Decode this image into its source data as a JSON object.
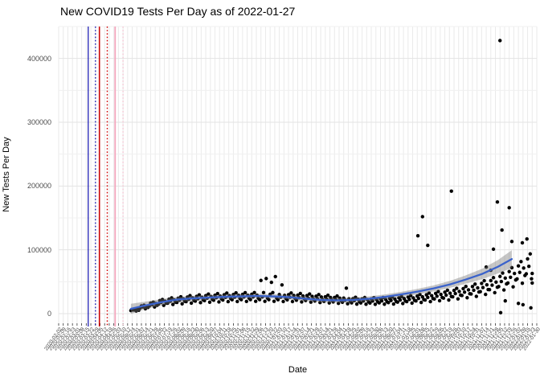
{
  "chart_data": {
    "type": "scatter",
    "title": "New COVID19 Tests Per Day as of 2022-01-27",
    "xlabel": "Date",
    "ylabel": "New Tests Per Day",
    "point_color": "#000000",
    "grid": {
      "v_color": "#eaeaea",
      "h_major_color": "#e3e3e3",
      "h_minor_color": "#f0f0f0",
      "tick_color": "#333333"
    },
    "y_ticks": [
      0,
      100000,
      200000,
      300000,
      400000
    ],
    "y_minor_ticks": [
      50000,
      150000,
      250000,
      350000,
      450000
    ],
    "ylim": [
      -15000,
      450000
    ],
    "x_start_date": "2020-02-02",
    "x_total_days": 728,
    "x_tick_labels": [
      "2020-02-02",
      "2020-02-09",
      "2020-02-16",
      "2020-02-23",
      "2020-03-01",
      "2020-03-08",
      "2020-03-15",
      "2020-03-22",
      "2020-03-29",
      "2020-04-05",
      "2020-04-12",
      "2020-04-19",
      "2020-04-26",
      "2020-05-03",
      "2020-05-10",
      "2020-05-17",
      "2020-05-24",
      "2020-05-31",
      "2020-06-07",
      "2020-06-14",
      "2020-06-21",
      "2020-06-28",
      "2020-07-05",
      "2020-07-12",
      "2020-07-19",
      "2020-07-26",
      "2020-08-02",
      "2020-08-09",
      "2020-08-16",
      "2020-08-23",
      "2020-08-30",
      "2020-09-06",
      "2020-09-13",
      "2020-09-20",
      "2020-09-27",
      "2020-10-04",
      "2020-10-11",
      "2020-10-18",
      "2020-10-25",
      "2020-11-01",
      "2020-11-08",
      "2020-11-15",
      "2020-11-22",
      "2020-11-29",
      "2020-12-06",
      "2020-12-13",
      "2020-12-20",
      "2020-12-27",
      "2021-01-03",
      "2021-01-10",
      "2021-01-17",
      "2021-01-24",
      "2021-01-31",
      "2021-02-07",
      "2021-02-14",
      "2021-02-21",
      "2021-02-28",
      "2021-03-07",
      "2021-03-14",
      "2021-03-21",
      "2021-03-28",
      "2021-04-04",
      "2021-04-11",
      "2021-04-18",
      "2021-04-25",
      "2021-05-02",
      "2021-05-09",
      "2021-05-16",
      "2021-05-23",
      "2021-05-30",
      "2021-06-06",
      "2021-06-13",
      "2021-06-20",
      "2021-06-27",
      "2021-07-04",
      "2021-07-11",
      "2021-07-18",
      "2021-07-25",
      "2021-08-01",
      "2021-08-08",
      "2021-08-15",
      "2021-08-22",
      "2021-08-29",
      "2021-09-05",
      "2021-09-12",
      "2021-09-19",
      "2021-09-26",
      "2021-10-03",
      "2021-10-10",
      "2021-10-17",
      "2021-10-24",
      "2021-10-31",
      "2021-11-07",
      "2021-11-14",
      "2021-11-21",
      "2021-11-28",
      "2021-12-05",
      "2021-12-12",
      "2021-12-19",
      "2021-12-26",
      "2022-01-02",
      "2022-01-09",
      "2022-01-16",
      "2022-01-23",
      "2022-01-30"
    ],
    "reference_lines": [
      {
        "day": 45,
        "color": "#1F1FB4",
        "style": "solid",
        "width": 1.3
      },
      {
        "day": 56,
        "color": "#1F1FB4",
        "style": "dotted",
        "width": 1.4
      },
      {
        "day": 62,
        "color": "#CC0000",
        "style": "solid",
        "width": 1.5
      },
      {
        "day": 74,
        "color": "#CC0000",
        "style": "dotted",
        "width": 1.4
      },
      {
        "day": 86,
        "color": "#F4A6BD",
        "style": "solid",
        "width": 1.8
      },
      {
        "day": 98,
        "color": "#F6C9D6",
        "style": "dotted",
        "width": 1.5
      }
    ],
    "smooth": {
      "color": "#3A62CB",
      "ribbon_color": "rgba(120,120,120,0.42)",
      "points": [
        [
          110,
          7500,
          8000
        ],
        [
          131,
          12600,
          6000
        ],
        [
          155,
          17600,
          5000
        ],
        [
          180,
          22000,
          4200
        ],
        [
          204,
          23900,
          3800
        ],
        [
          229,
          25200,
          3600
        ],
        [
          253,
          26400,
          3500
        ],
        [
          278,
          27000,
          3400
        ],
        [
          302,
          27700,
          3400
        ],
        [
          327,
          27000,
          3400
        ],
        [
          351,
          25800,
          3500
        ],
        [
          376,
          23300,
          3600
        ],
        [
          400,
          21400,
          3700
        ],
        [
          425,
          20800,
          3800
        ],
        [
          449,
          21400,
          3800
        ],
        [
          473,
          23300,
          3800
        ],
        [
          498,
          26400,
          3900
        ],
        [
          522,
          30200,
          4000
        ],
        [
          547,
          34600,
          4300
        ],
        [
          571,
          39600,
          4700
        ],
        [
          596,
          45900,
          5400
        ],
        [
          620,
          53500,
          6500
        ],
        [
          645,
          62300,
          8200
        ],
        [
          669,
          73600,
          10500
        ],
        [
          690,
          85500,
          14000
        ]
      ]
    },
    "points": [
      [
        110,
        4800
      ],
      [
        112,
        6600
      ],
      [
        114,
        5700
      ],
      [
        116,
        7200
      ],
      [
        118,
        4200
      ],
      [
        120,
        6300
      ],
      [
        122,
        5300
      ],
      [
        124,
        8800
      ],
      [
        126,
        12100
      ],
      [
        128,
        10500
      ],
      [
        130,
        13200
      ],
      [
        132,
        7700
      ],
      [
        134,
        11600
      ],
      [
        136,
        9700
      ],
      [
        138,
        12000
      ],
      [
        140,
        16500
      ],
      [
        142,
        14300
      ],
      [
        144,
        18000
      ],
      [
        146,
        10500
      ],
      [
        148,
        15800
      ],
      [
        150,
        13200
      ],
      [
        152,
        14800
      ],
      [
        154,
        20400
      ],
      [
        156,
        17600
      ],
      [
        158,
        22200
      ],
      [
        160,
        13000
      ],
      [
        162,
        19400
      ],
      [
        164,
        16300
      ],
      [
        166,
        16400
      ],
      [
        168,
        22600
      ],
      [
        170,
        19500
      ],
      [
        172,
        24600
      ],
      [
        174,
        14400
      ],
      [
        176,
        21500
      ],
      [
        178,
        18000
      ],
      [
        180,
        17600
      ],
      [
        182,
        24200
      ],
      [
        184,
        20900
      ],
      [
        186,
        26400
      ],
      [
        188,
        15400
      ],
      [
        190,
        23100
      ],
      [
        192,
        19400
      ],
      [
        194,
        18800
      ],
      [
        196,
        25900
      ],
      [
        198,
        22300
      ],
      [
        200,
        28200
      ],
      [
        202,
        16500
      ],
      [
        204,
        24700
      ],
      [
        206,
        20700
      ],
      [
        208,
        19600
      ],
      [
        210,
        27000
      ],
      [
        212,
        23300
      ],
      [
        214,
        29400
      ],
      [
        216,
        17200
      ],
      [
        218,
        25700
      ],
      [
        220,
        21600
      ],
      [
        222,
        20400
      ],
      [
        224,
        28100
      ],
      [
        226,
        24200
      ],
      [
        228,
        30600
      ],
      [
        230,
        17900
      ],
      [
        232,
        26800
      ],
      [
        234,
        22400
      ],
      [
        236,
        21000
      ],
      [
        238,
        28800
      ],
      [
        240,
        24900
      ],
      [
        242,
        31400
      ],
      [
        244,
        18300
      ],
      [
        246,
        27500
      ],
      [
        248,
        23100
      ],
      [
        250,
        21400
      ],
      [
        252,
        29500
      ],
      [
        254,
        25500
      ],
      [
        256,
        32200
      ],
      [
        258,
        18800
      ],
      [
        260,
        28100
      ],
      [
        262,
        23600
      ],
      [
        264,
        21800
      ],
      [
        266,
        29900
      ],
      [
        268,
        25800
      ],
      [
        270,
        32600
      ],
      [
        272,
        19000
      ],
      [
        274,
        28600
      ],
      [
        276,
        23900
      ],
      [
        278,
        21900
      ],
      [
        280,
        30100
      ],
      [
        282,
        26000
      ],
      [
        284,
        32900
      ],
      [
        286,
        19200
      ],
      [
        288,
        28800
      ],
      [
        290,
        24100
      ],
      [
        292,
        22000
      ],
      [
        294,
        30300
      ],
      [
        296,
        26100
      ],
      [
        298,
        33000
      ],
      [
        300,
        19300
      ],
      [
        302,
        28900
      ],
      [
        304,
        24200
      ],
      [
        306,
        22000
      ],
      [
        308,
        52000
      ],
      [
        310,
        26100
      ],
      [
        312,
        33000
      ],
      [
        314,
        19300
      ],
      [
        316,
        55000
      ],
      [
        318,
        24200
      ],
      [
        320,
        22000
      ],
      [
        322,
        30300
      ],
      [
        324,
        49000
      ],
      [
        326,
        33000
      ],
      [
        328,
        19300
      ],
      [
        330,
        58000
      ],
      [
        332,
        24200
      ],
      [
        334,
        21800
      ],
      [
        336,
        29900
      ],
      [
        338,
        25800
      ],
      [
        340,
        45000
      ],
      [
        342,
        19000
      ],
      [
        344,
        28600
      ],
      [
        346,
        23900
      ],
      [
        348,
        21600
      ],
      [
        350,
        29700
      ],
      [
        352,
        25700
      ],
      [
        354,
        32400
      ],
      [
        356,
        18900
      ],
      [
        358,
        28400
      ],
      [
        360,
        23800
      ],
      [
        362,
        21000
      ],
      [
        364,
        28900
      ],
      [
        366,
        25000
      ],
      [
        368,
        31600
      ],
      [
        370,
        18400
      ],
      [
        372,
        27600
      ],
      [
        374,
        23100
      ],
      [
        376,
        20600
      ],
      [
        378,
        28300
      ],
      [
        380,
        24400
      ],
      [
        382,
        30800
      ],
      [
        384,
        18000
      ],
      [
        386,
        27000
      ],
      [
        388,
        22600
      ],
      [
        390,
        19800
      ],
      [
        392,
        27300
      ],
      [
        394,
        23600
      ],
      [
        396,
        29800
      ],
      [
        398,
        17400
      ],
      [
        400,
        26000
      ],
      [
        402,
        21800
      ],
      [
        404,
        19200
      ],
      [
        406,
        26400
      ],
      [
        408,
        22800
      ],
      [
        410,
        28800
      ],
      [
        412,
        16800
      ],
      [
        414,
        25200
      ],
      [
        416,
        21100
      ],
      [
        418,
        18400
      ],
      [
        420,
        25300
      ],
      [
        422,
        21900
      ],
      [
        424,
        27600
      ],
      [
        426,
        16100
      ],
      [
        428,
        24200
      ],
      [
        430,
        20200
      ],
      [
        432,
        17800
      ],
      [
        434,
        24400
      ],
      [
        436,
        21100
      ],
      [
        438,
        40000
      ],
      [
        440,
        15500
      ],
      [
        442,
        23300
      ],
      [
        444,
        19500
      ],
      [
        446,
        17000
      ],
      [
        448,
        23400
      ],
      [
        450,
        20200
      ],
      [
        452,
        25600
      ],
      [
        454,
        14900
      ],
      [
        456,
        22400
      ],
      [
        458,
        18700
      ],
      [
        460,
        16800
      ],
      [
        462,
        23100
      ],
      [
        464,
        20000
      ],
      [
        466,
        25200
      ],
      [
        468,
        14700
      ],
      [
        470,
        22100
      ],
      [
        472,
        18500
      ],
      [
        474,
        16600
      ],
      [
        476,
        22900
      ],
      [
        478,
        19800
      ],
      [
        480,
        25000
      ],
      [
        482,
        14600
      ],
      [
        484,
        21800
      ],
      [
        486,
        18300
      ],
      [
        488,
        16900
      ],
      [
        490,
        23200
      ],
      [
        492,
        20000
      ],
      [
        494,
        25300
      ],
      [
        496,
        14800
      ],
      [
        498,
        22200
      ],
      [
        500,
        18600
      ],
      [
        502,
        17300
      ],
      [
        504,
        23800
      ],
      [
        506,
        20500
      ],
      [
        508,
        25900
      ],
      [
        510,
        15100
      ],
      [
        512,
        22700
      ],
      [
        514,
        19000
      ],
      [
        516,
        18000
      ],
      [
        518,
        24800
      ],
      [
        520,
        21400
      ],
      [
        522,
        27000
      ],
      [
        524,
        15800
      ],
      [
        526,
        23600
      ],
      [
        528,
        19800
      ],
      [
        530,
        18800
      ],
      [
        532,
        25900
      ],
      [
        534,
        22300
      ],
      [
        536,
        28200
      ],
      [
        538,
        16500
      ],
      [
        540,
        24700
      ],
      [
        542,
        20700
      ],
      [
        544,
        20000
      ],
      [
        546,
        27500
      ],
      [
        548,
        23800
      ],
      [
        550,
        30000
      ],
      [
        552,
        17500
      ],
      [
        554,
        26300
      ],
      [
        556,
        22000
      ],
      [
        558,
        21400
      ],
      [
        560,
        29500
      ],
      [
        562,
        25500
      ],
      [
        564,
        32200
      ],
      [
        566,
        18800
      ],
      [
        568,
        28100
      ],
      [
        570,
        23600
      ],
      [
        572,
        23000
      ],
      [
        574,
        31700
      ],
      [
        576,
        27400
      ],
      [
        578,
        34600
      ],
      [
        580,
        20200
      ],
      [
        582,
        30200
      ],
      [
        584,
        25300
      ],
      [
        586,
        24400
      ],
      [
        588,
        33600
      ],
      [
        590,
        29000
      ],
      [
        592,
        36600
      ],
      [
        594,
        21400
      ],
      [
        596,
        32000
      ],
      [
        598,
        26800
      ],
      [
        600,
        26400
      ],
      [
        602,
        36300
      ],
      [
        604,
        31400
      ],
      [
        606,
        39600
      ],
      [
        608,
        23100
      ],
      [
        610,
        34700
      ],
      [
        612,
        29000
      ],
      [
        614,
        28400
      ],
      [
        616,
        39100
      ],
      [
        618,
        33700
      ],
      [
        620,
        42600
      ],
      [
        622,
        24900
      ],
      [
        624,
        37300
      ],
      [
        626,
        31200
      ],
      [
        628,
        30800
      ],
      [
        630,
        42400
      ],
      [
        632,
        36600
      ],
      [
        634,
        46200
      ],
      [
        636,
        27000
      ],
      [
        638,
        40400
      ],
      [
        640,
        33900
      ],
      [
        642,
        34400
      ],
      [
        644,
        47300
      ],
      [
        646,
        40900
      ],
      [
        648,
        51600
      ],
      [
        650,
        30100
      ],
      [
        652,
        45200
      ],
      [
        654,
        37800
      ],
      [
        656,
        37600
      ],
      [
        658,
        51700
      ],
      [
        660,
        44700
      ],
      [
        662,
        56400
      ],
      [
        664,
        32900
      ],
      [
        666,
        49400
      ],
      [
        668,
        41400
      ],
      [
        670,
        42400
      ],
      [
        672,
        58300
      ],
      [
        674,
        50400
      ],
      [
        676,
        63600
      ],
      [
        678,
        37100
      ],
      [
        680,
        55700
      ],
      [
        682,
        46600
      ],
      [
        684,
        48000
      ],
      [
        686,
        66000
      ],
      [
        688,
        57000
      ],
      [
        690,
        72000
      ],
      [
        692,
        42000
      ],
      [
        694,
        63000
      ],
      [
        696,
        52800
      ],
      [
        698,
        54400
      ],
      [
        700,
        74800
      ],
      [
        702,
        64600
      ],
      [
        704,
        81600
      ],
      [
        706,
        47600
      ],
      [
        708,
        71400
      ],
      [
        710,
        59800
      ],
      [
        712,
        62400
      ],
      [
        714,
        85800
      ],
      [
        716,
        74100
      ],
      [
        718,
        93600
      ],
      [
        720,
        54600
      ],
      [
        547,
        122000
      ],
      [
        554,
        152000
      ],
      [
        562,
        107000
      ],
      [
        598,
        192000
      ],
      [
        662,
        101000
      ],
      [
        668,
        175000
      ],
      [
        672,
        428000
      ],
      [
        673,
        1500
      ],
      [
        675,
        131000
      ],
      [
        686,
        166000
      ],
      [
        690,
        113000
      ],
      [
        706,
        111000
      ],
      [
        713,
        117000
      ],
      [
        700,
        16000
      ],
      [
        707,
        14000
      ],
      [
        719,
        9000
      ],
      [
        680,
        20000
      ],
      [
        651,
        73000
      ],
      [
        658,
        68000
      ],
      [
        721,
        63000
      ],
      [
        721,
        48000
      ]
    ]
  }
}
